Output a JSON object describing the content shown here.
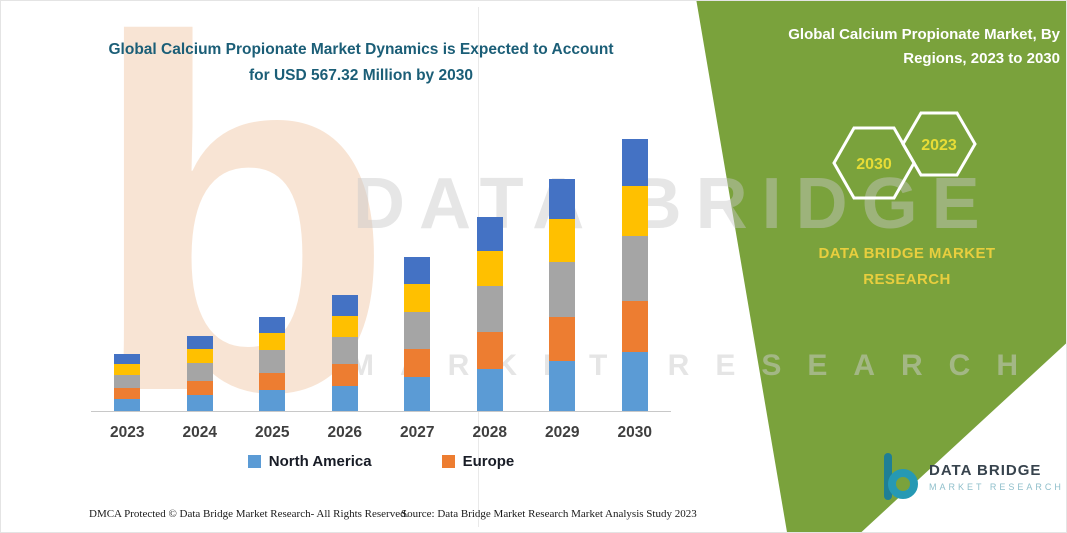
{
  "left_section": {
    "title": "Global Calcium Propionate Market Dynamics is Expected to Account for USD 567.32 Million by 2030"
  },
  "chart_data": {
    "type": "bar",
    "stacked": true,
    "title": "Global Calcium Propionate Market Dynamics is Expected to Account for USD 567.32 Million by 2030",
    "unit": "USD Million",
    "categories": [
      "2023",
      "2024",
      "2025",
      "2026",
      "2027",
      "2028",
      "2029",
      "2030"
    ],
    "series": [
      {
        "name": "North America",
        "color": "#5B9BD5",
        "values": [
          26,
          34,
          43,
          53,
          70,
          88,
          105,
          123
        ]
      },
      {
        "name": "Europe",
        "color": "#ED7D31",
        "values": [
          22,
          29,
          37,
          45,
          60,
          76,
          91,
          107
        ]
      },
      {
        "name": "",
        "color": "#A5A5A5",
        "values": [
          28,
          37,
          47,
          57,
          77,
          96,
          115,
          135
        ]
      },
      {
        "name": "",
        "color": "#FFC000",
        "values": [
          22,
          29,
          36,
          44,
          59,
          74,
          89,
          104
        ]
      },
      {
        "name": "",
        "color": "#4472C4",
        "values": [
          20,
          27,
          34,
          42,
          56,
          71,
          84,
          98.32
        ]
      }
    ],
    "totals_estimated": [
      118,
      156,
      197,
      241,
      322,
      405,
      484,
      567.32
    ],
    "ylim": [
      0,
      600
    ],
    "grid": false,
    "legend_position": "bottom"
  },
  "legend": [
    {
      "label": "North America",
      "color": "#5B9BD5"
    },
    {
      "label": "Europe",
      "color": "#ED7D31"
    }
  ],
  "right_panel": {
    "title": "Global Calcium Propionate Market, By Regions, 2023 to 2030",
    "hexagons": [
      {
        "label": "2030"
      },
      {
        "label": "2023"
      }
    ],
    "brand_line1": "DATA BRIDGE MARKET",
    "brand_line2": "RESEARCH",
    "colors": {
      "background": "#7AA23C",
      "accent_text": "#E7DC36"
    }
  },
  "watermark": {
    "glyph": "b",
    "line1": "DATA BRIDGE",
    "line2": "MARKET  RESEARCH"
  },
  "footer": {
    "dmca": "DMCA Protected © Data Bridge Market Research-  All Rights Reserved.",
    "source": "Source: Data Bridge Market Research  Market Analysis Study 2023"
  },
  "logo": {
    "title": "DATA BRIDGE",
    "subtitle": "MARKET RESEARCH"
  }
}
